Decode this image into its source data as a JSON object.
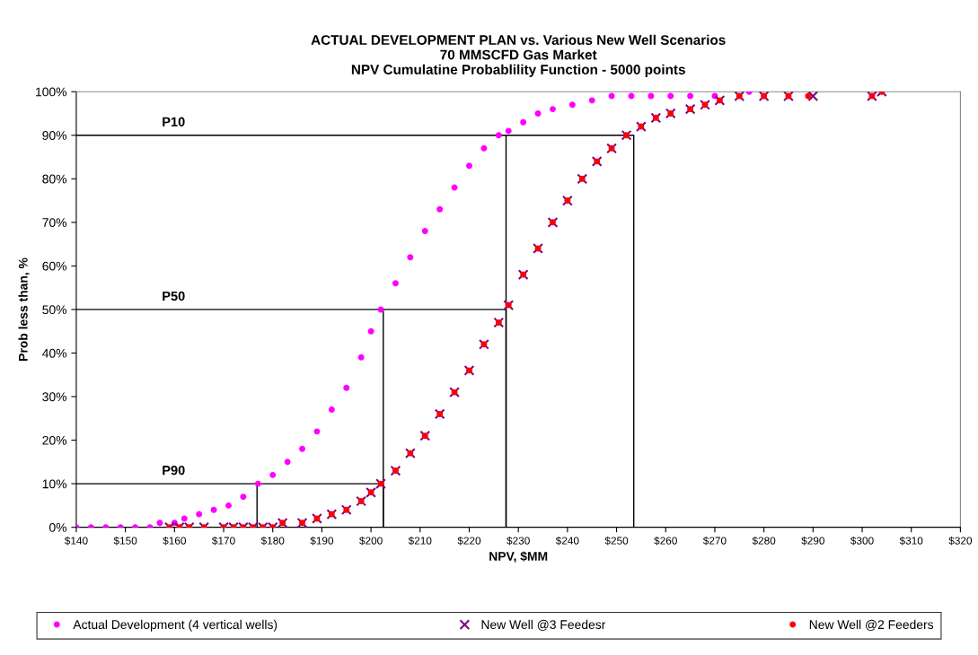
{
  "chart_data": {
    "type": "scatter",
    "title": "ACTUAL DEVELOPMENT PLAN vs. Various New Well Scenarios\n70 MMSCFD Gas Market\nNPV Cumulatine Probablility Function - 5000 points",
    "xlabel": "NPV, $MM",
    "ylabel": "Prob less than, %",
    "xlim": [
      140,
      320
    ],
    "xticks": [
      {
        "value": 140,
        "label": "$140"
      },
      {
        "value": 150,
        "label": "$150"
      },
      {
        "value": 160,
        "label": "$160"
      },
      {
        "value": 170,
        "label": "$170"
      },
      {
        "value": 180,
        "label": "$180"
      },
      {
        "value": 190,
        "label": "$190"
      },
      {
        "value": 200,
        "label": "$200"
      },
      {
        "value": 210,
        "label": "$210"
      },
      {
        "value": 220,
        "label": "$220"
      },
      {
        "value": 230,
        "label": "$230"
      },
      {
        "value": 240,
        "label": "$240"
      },
      {
        "value": 250,
        "label": "$250"
      },
      {
        "value": 260,
        "label": "$260"
      },
      {
        "value": 270,
        "label": "$270"
      },
      {
        "value": 280,
        "label": "$280"
      },
      {
        "value": 290,
        "label": "$290"
      },
      {
        "value": 300,
        "label": "$300"
      },
      {
        "value": 310,
        "label": "$310"
      },
      {
        "value": 320,
        "label": "$320"
      }
    ],
    "ylim": [
      0,
      100
    ],
    "yticks": [
      {
        "value": 0,
        "label": "0%"
      },
      {
        "value": 10,
        "label": "10%"
      },
      {
        "value": 20,
        "label": "20%"
      },
      {
        "value": 30,
        "label": "30%"
      },
      {
        "value": 40,
        "label": "40%"
      },
      {
        "value": 50,
        "label": "50%"
      },
      {
        "value": 60,
        "label": "60%"
      },
      {
        "value": 70,
        "label": "70%"
      },
      {
        "value": 80,
        "label": "80%"
      },
      {
        "value": 90,
        "label": "90%"
      },
      {
        "value": 100,
        "label": "100%"
      }
    ],
    "grid": false,
    "legend": "bottom",
    "annotations": [
      {
        "text": "P10",
        "y": 90
      },
      {
        "text": "P50",
        "y": 50
      },
      {
        "text": "P90",
        "y": 10
      }
    ],
    "series": [
      {
        "type": "line",
        "color": "#000000",
        "marker": "none",
        "x": [
          140,
          253.5,
          253.5
        ],
        "values": [
          90,
          90,
          0
        ]
      },
      {
        "type": "line",
        "color": "#000000",
        "marker": "none",
        "x": [
          227.5,
          227.5
        ],
        "values": [
          90,
          0
        ]
      },
      {
        "type": "line",
        "color": "#000000",
        "marker": "none",
        "x": [
          140,
          227.5,
          227.5
        ],
        "values": [
          50,
          50,
          0
        ]
      },
      {
        "type": "line",
        "color": "#000000",
        "marker": "none",
        "x": [
          202.5,
          202.5
        ],
        "values": [
          50,
          0
        ]
      },
      {
        "type": "line",
        "color": "#000000",
        "marker": "none",
        "x": [
          140,
          202.5,
          202.5
        ],
        "values": [
          10,
          10,
          0
        ]
      },
      {
        "type": "line",
        "color": "#000000",
        "marker": "none",
        "x": [
          176.8,
          176.8
        ],
        "values": [
          10,
          0
        ]
      },
      {
        "name": "Actual Development (4 vertical wells)",
        "color": "#ff00ff",
        "marker": "circle",
        "x": [
          140,
          143,
          146,
          149,
          152,
          155,
          157,
          160,
          162,
          165,
          168,
          171,
          174,
          177,
          180,
          183,
          186,
          189,
          192,
          195,
          198,
          200,
          202,
          205,
          208,
          211,
          214,
          217,
          220,
          223,
          226,
          228,
          231,
          234,
          237,
          241,
          245,
          249,
          253,
          257,
          261,
          265,
          270,
          277
        ],
        "values": [
          0,
          0,
          0,
          0,
          0,
          0,
          1,
          1,
          2,
          3,
          4,
          5,
          7,
          10,
          12,
          15,
          18,
          22,
          27,
          32,
          39,
          45,
          50,
          56,
          62,
          68,
          73,
          78,
          83,
          87,
          90,
          91,
          93,
          95,
          96,
          97,
          98,
          99,
          99,
          99,
          99,
          99,
          99,
          100
        ]
      },
      {
        "name": "New Well @3 Feedesr",
        "color": "#800080",
        "marker": "cross",
        "x": [
          159,
          161,
          163,
          166,
          170,
          172,
          174,
          176,
          178,
          180,
          182,
          186,
          189,
          192,
          195,
          198,
          200,
          202,
          205,
          208,
          211,
          214,
          217,
          220,
          223,
          226,
          228,
          231,
          234,
          237,
          240,
          243,
          246,
          249,
          252,
          255,
          258,
          261,
          265,
          268,
          271,
          275,
          280,
          285,
          290,
          302,
          304
        ],
        "values": [
          0,
          0,
          0,
          0,
          0,
          0,
          0,
          0,
          0,
          0,
          1,
          1,
          2,
          3,
          4,
          6,
          8,
          10,
          13,
          17,
          21,
          26,
          31,
          36,
          42,
          47,
          51,
          58,
          64,
          70,
          75,
          80,
          84,
          87,
          90,
          92,
          94,
          95,
          96,
          97,
          98,
          99,
          99,
          99,
          99,
          99,
          100
        ]
      },
      {
        "name": "New Well @2 Feeders",
        "color": "#ff0000",
        "marker": "circle",
        "x": [
          159,
          161,
          163,
          166,
          170,
          172,
          174,
          176,
          178,
          180,
          182,
          186,
          189,
          192,
          195,
          198,
          200,
          202,
          205,
          208,
          211,
          214,
          217,
          220,
          223,
          226,
          228,
          231,
          234,
          237,
          240,
          243,
          246,
          249,
          252,
          255,
          258,
          261,
          265,
          268,
          271,
          275,
          280,
          285,
          289,
          302,
          304
        ],
        "values": [
          0,
          0,
          0,
          0,
          0,
          0,
          0,
          0,
          0,
          0,
          1,
          1,
          2,
          3,
          4,
          6,
          8,
          10,
          13,
          17,
          21,
          26,
          31,
          36,
          42,
          47,
          51,
          58,
          64,
          70,
          75,
          80,
          84,
          87,
          90,
          92,
          94,
          95,
          96,
          97,
          98,
          99,
          99,
          99,
          99,
          99,
          100
        ]
      }
    ]
  }
}
